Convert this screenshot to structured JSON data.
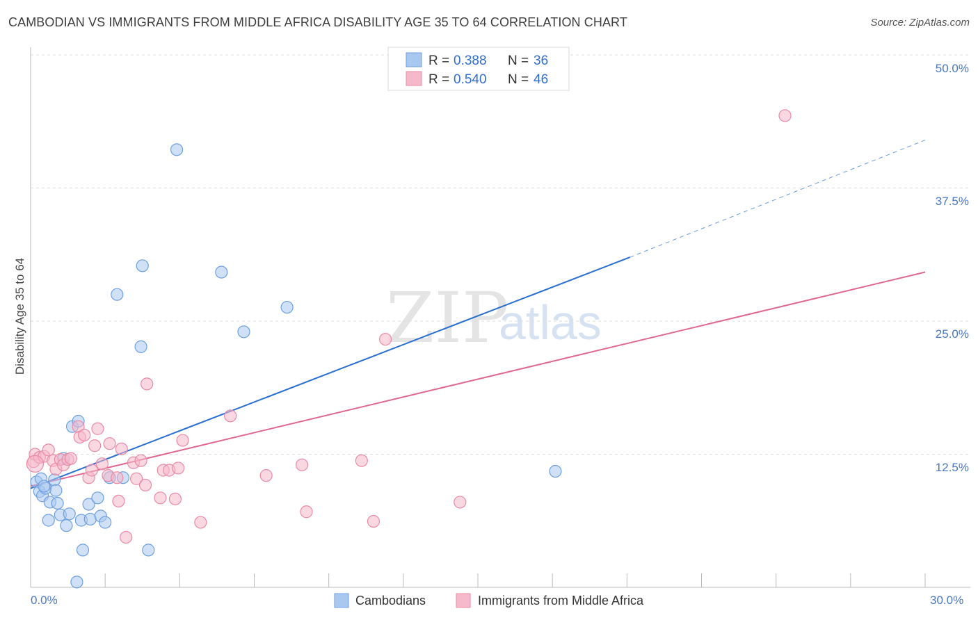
{
  "title": "CAMBODIAN VS IMMIGRANTS FROM MIDDLE AFRICA DISABILITY AGE 35 TO 64 CORRELATION CHART",
  "source": "Source: ZipAtlas.com",
  "watermark": {
    "zip": "ZIP",
    "atlas": "atlas"
  },
  "colors": {
    "blue_fill": "#a9c8f0",
    "blue_stroke": "#6d9fe0",
    "blue_line": "#2a6fd0",
    "pink_fill": "#f6b8cb",
    "pink_stroke": "#e88aa6",
    "pink_line": "#e06890",
    "grid": "#dddddd",
    "tick_label": "#4a78c2"
  },
  "legend": {
    "rows": [
      {
        "r_label": "R =",
        "r_value": "0.388",
        "n_label": "N =",
        "n_value": "36"
      },
      {
        "r_label": "R =",
        "r_value": "0.540",
        "n_label": "N =",
        "n_value": "46"
      }
    ]
  },
  "chart_data": {
    "type": "scatter",
    "title": "CAMBODIAN VS IMMIGRANTS FROM MIDDLE AFRICA DISABILITY AGE 35 TO 64 CORRELATION CHART",
    "xlabel": "",
    "ylabel": "Disability Age 35 to 64",
    "xlim": [
      0,
      30
    ],
    "ylim": [
      0,
      50
    ],
    "x_tick_labels": [
      "0.0%",
      "30.0%"
    ],
    "y_ticks": [
      12.5,
      25,
      37.5,
      50
    ],
    "y_tick_labels": [
      "12.5%",
      "25.0%",
      "37.5%",
      "50.0%"
    ],
    "grid": true,
    "legend_position": "top-center",
    "series": [
      {
        "name": "Cambodians",
        "color": "#a9c8f0",
        "points": [
          [
            0.2,
            9.9
          ],
          [
            0.3,
            9.0
          ],
          [
            0.35,
            10.2
          ],
          [
            0.4,
            8.6
          ],
          [
            0.5,
            9.3
          ],
          [
            0.6,
            6.3
          ],
          [
            0.65,
            8.0
          ],
          [
            0.8,
            10.1
          ],
          [
            0.85,
            9.1
          ],
          [
            0.9,
            7.9
          ],
          [
            1.0,
            6.8
          ],
          [
            1.1,
            12.1
          ],
          [
            1.2,
            5.8
          ],
          [
            1.3,
            6.9
          ],
          [
            1.4,
            15.1
          ],
          [
            1.6,
            15.6
          ],
          [
            1.7,
            6.3
          ],
          [
            1.75,
            3.5
          ],
          [
            1.95,
            7.8
          ],
          [
            2.0,
            6.4
          ],
          [
            2.25,
            8.4
          ],
          [
            2.35,
            6.7
          ],
          [
            2.5,
            6.1
          ],
          [
            2.65,
            10.3
          ],
          [
            2.9,
            27.5
          ],
          [
            3.1,
            10.3
          ],
          [
            3.7,
            22.6
          ],
          [
            3.75,
            30.2
          ],
          [
            3.95,
            3.5
          ],
          [
            4.9,
            41.1
          ],
          [
            6.4,
            29.6
          ],
          [
            7.15,
            24.0
          ],
          [
            8.6,
            26.3
          ],
          [
            17.6,
            10.9
          ],
          [
            1.55,
            0.5
          ],
          [
            0.45,
            9.5
          ]
        ],
        "trend": {
          "x1": 0,
          "y1": 9.3,
          "x2": 20.1,
          "y2": 31.0,
          "dash_to_x": 30,
          "dash_to_y": 42.0
        }
      },
      {
        "name": "Immigrants from Middle Africa",
        "color": "#f6b8cb",
        "points": [
          [
            0.1,
            11.8
          ],
          [
            0.15,
            12.5
          ],
          [
            0.3,
            12.2
          ],
          [
            0.45,
            12.3
          ],
          [
            0.6,
            12.9
          ],
          [
            0.75,
            11.9
          ],
          [
            0.85,
            11.1
          ],
          [
            1.0,
            12.0
          ],
          [
            1.1,
            11.5
          ],
          [
            1.25,
            12.0
          ],
          [
            1.35,
            12.1
          ],
          [
            1.6,
            15.1
          ],
          [
            1.65,
            14.1
          ],
          [
            1.8,
            14.3
          ],
          [
            1.95,
            10.3
          ],
          [
            2.05,
            11.0
          ],
          [
            2.15,
            13.3
          ],
          [
            2.25,
            14.9
          ],
          [
            2.4,
            11.6
          ],
          [
            2.6,
            10.5
          ],
          [
            2.65,
            13.5
          ],
          [
            2.9,
            10.3
          ],
          [
            2.95,
            8.1
          ],
          [
            3.05,
            13.0
          ],
          [
            3.2,
            4.7
          ],
          [
            3.45,
            11.7
          ],
          [
            3.55,
            10.2
          ],
          [
            3.7,
            11.9
          ],
          [
            3.85,
            9.6
          ],
          [
            3.9,
            19.1
          ],
          [
            4.35,
            8.4
          ],
          [
            4.45,
            11.0
          ],
          [
            4.65,
            11.0
          ],
          [
            4.85,
            8.3
          ],
          [
            4.95,
            11.2
          ],
          [
            5.1,
            13.8
          ],
          [
            5.7,
            6.1
          ],
          [
            6.7,
            16.1
          ],
          [
            7.9,
            10.5
          ],
          [
            9.1,
            11.5
          ],
          [
            9.25,
            7.1
          ],
          [
            11.1,
            11.9
          ],
          [
            11.5,
            6.2
          ],
          [
            11.9,
            23.3
          ],
          [
            14.4,
            8.0
          ],
          [
            25.3,
            44.3
          ]
        ],
        "trend": {
          "x1": 0,
          "y1": 9.5,
          "x2": 30,
          "y2": 29.6
        }
      }
    ]
  }
}
